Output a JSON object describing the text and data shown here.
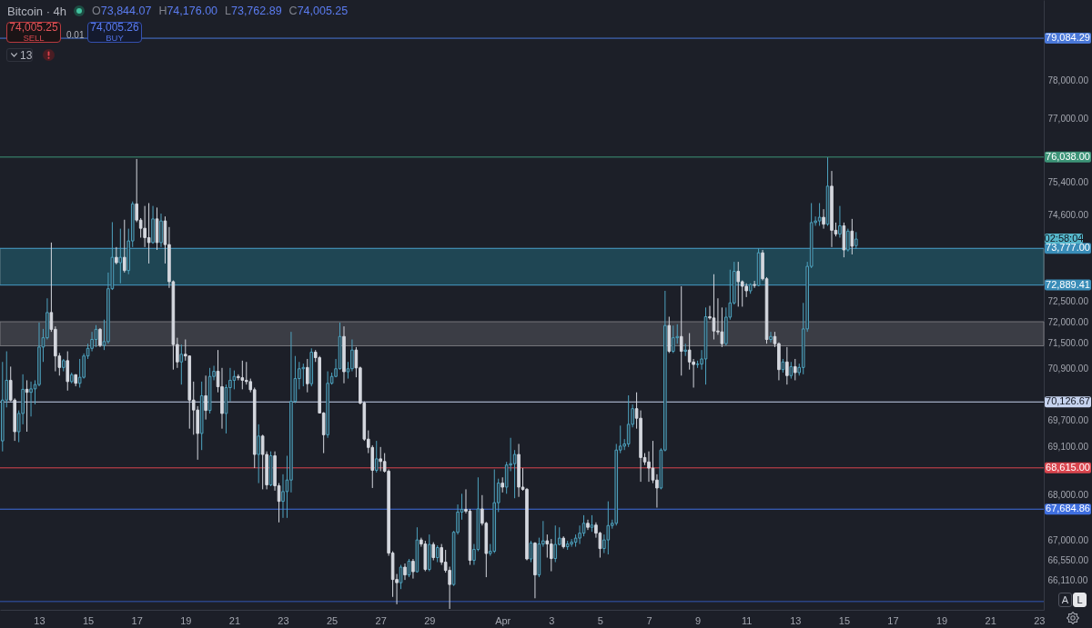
{
  "chart_data": {
    "type": "candlestick",
    "title": "Bitcoin · 4h",
    "x": [
      "--03-11T12:00",
      "--03-11T16:00",
      "--03-11T20:00",
      "--03-12T00:00",
      "--03-12T04:00",
      "--03-12T08:00",
      "--03-12T12:00",
      "--03-12T16:00",
      "--03-12T20:00",
      "--03-13T00:00",
      "--03-13T04:00",
      "--03-13T08:00",
      "--03-13T12:00",
      "--03-13T16:00",
      "--03-13T20:00",
      "--03-14T00:00",
      "--03-14T04:00",
      "--03-14T08:00",
      "--03-14T12:00",
      "--03-14T16:00",
      "--03-14T20:00",
      "--03-15T00:00",
      "--03-15T04:00",
      "--03-15T08:00",
      "--03-15T12:00",
      "--03-15T16:00",
      "--03-15T20:00",
      "--03-16T00:00",
      "--03-16T04:00",
      "--03-16T08:00",
      "--03-16T12:00",
      "--03-16T16:00",
      "--03-16T20:00",
      "--03-17T00:00",
      "--03-17T04:00",
      "--03-17T08:00",
      "--03-17T12:00",
      "--03-17T16:00",
      "--03-17T20:00",
      "--03-18T00:00",
      "--03-18T04:00",
      "--03-18T08:00",
      "--03-18T12:00",
      "--03-18T16:00",
      "--03-18T20:00",
      "--03-19T00:00",
      "--03-19T04:00",
      "--03-19T08:00",
      "--03-19T12:00",
      "--03-19T16:00",
      "--03-19T20:00",
      "--03-20T00:00",
      "--03-20T04:00",
      "--03-20T08:00",
      "--03-20T12:00",
      "--03-20T16:00",
      "--03-20T20:00",
      "--03-21T00:00",
      "--03-21T04:00",
      "--03-21T08:00",
      "--03-21T12:00",
      "--03-21T16:00",
      "--03-21T20:00",
      "--03-22T00:00",
      "--03-22T04:00",
      "--03-22T08:00",
      "--03-22T12:00",
      "--03-22T16:00",
      "--03-22T20:00",
      "--03-23T00:00",
      "--03-23T04:00",
      "--03-23T08:00",
      "--03-23T12:00",
      "--03-23T16:00",
      "--03-23T20:00",
      "--03-24T00:00",
      "--03-24T04:00",
      "--03-24T08:00",
      "--03-24T12:00",
      "--03-24T16:00",
      "--03-24T20:00",
      "--03-25T00:00",
      "--03-25T04:00",
      "--03-25T08:00",
      "--03-25T12:00",
      "--03-25T16:00",
      "--03-25T20:00",
      "--03-26T00:00",
      "--03-26T04:00",
      "--03-26T08:00",
      "--03-26T12:00",
      "--03-26T16:00",
      "--03-26T20:00",
      "--03-27T00:00",
      "--03-27T04:00",
      "--03-27T08:00",
      "--03-27T12:00",
      "--03-27T16:00",
      "--03-27T20:00",
      "--03-28T00:00",
      "--03-28T04:00",
      "--03-28T08:00",
      "--03-28T12:00",
      "--03-28T16:00",
      "--03-28T20:00",
      "--03-29T00:00",
      "--03-29T04:00",
      "--03-29T08:00",
      "--03-29T12:00",
      "--03-29T16:00",
      "--03-29T20:00",
      "--03-30T00:00",
      "--03-30T04:00",
      "--03-30T08:00",
      "--03-30T12:00",
      "--03-30T16:00",
      "--03-30T20:00",
      "--03-31T00:00",
      "--03-31T04:00",
      "--03-31T08:00",
      "--03-31T12:00",
      "--03-31T16:00",
      "--03-31T20:00",
      "--04-01T00:00",
      "--04-01T04:00",
      "--04-01T08:00",
      "--04-01T12:00",
      "--04-01T16:00",
      "--04-01T20:00",
      "--04-02T00:00",
      "--04-02T04:00",
      "--04-02T08:00",
      "--04-02T12:00",
      "--04-02T16:00",
      "--04-02T20:00",
      "--04-03T00:00",
      "--04-03T04:00",
      "--04-03T08:00",
      "--04-03T12:00",
      "--04-03T16:00",
      "--04-03T20:00",
      "--04-04T00:00",
      "--04-04T04:00",
      "--04-04T08:00",
      "--04-04T12:00",
      "--04-04T16:00",
      "--04-04T20:00",
      "--04-05T00:00",
      "--04-05T04:00",
      "--04-05T08:00",
      "--04-05T12:00",
      "--04-05T16:00",
      "--04-05T20:00",
      "--04-06T00:00",
      "--04-06T04:00",
      "--04-06T08:00",
      "--04-06T12:00",
      "--04-06T16:00",
      "--04-06T20:00",
      "--04-07T00:00",
      "--04-07T04:00",
      "--04-07T08:00",
      "--04-07T12:00",
      "--04-07T16:00",
      "--04-07T20:00",
      "--04-08T00:00",
      "--04-08T04:00",
      "--04-08T08:00",
      "--04-08T12:00",
      "--04-08T16:00",
      "--04-08T20:00",
      "--04-09T00:00",
      "--04-09T04:00",
      "--04-09T08:00",
      "--04-09T12:00",
      "--04-09T16:00",
      "--04-09T20:00",
      "--04-10T00:00",
      "--04-10T04:00",
      "--04-10T08:00",
      "--04-10T12:00",
      "--04-10T16:00",
      "--04-10T20:00",
      "--04-11T00:00",
      "--04-11T04:00",
      "--04-11T08:00",
      "--04-11T12:00",
      "--04-11T16:00",
      "--04-11T20:00",
      "--04-12T00:00",
      "--04-12T04:00",
      "--04-12T08:00",
      "--04-12T12:00",
      "--04-12T16:00",
      "--04-12T20:00",
      "--04-13T00:00",
      "--04-13T04:00",
      "--04-13T08:00",
      "--04-13T12:00",
      "--04-13T16:00",
      "--04-13T20:00",
      "--04-14T00:00",
      "--04-14T04:00",
      "--04-14T08:00",
      "--04-14T12:00",
      "--04-14T16:00",
      "--04-14T20:00",
      "--04-15T00:00",
      "--04-15T04:00",
      "--04-15T08:00",
      "--04-15T12:00"
    ],
    "ohlc": [
      [
        69230,
        71060,
        68990,
        70170
      ],
      [
        70170,
        71310,
        70000,
        70630
      ],
      [
        70630,
        70950,
        70140,
        70170
      ],
      [
        70170,
        70210,
        69230,
        69440
      ],
      [
        69440,
        69930,
        69200,
        69860
      ],
      [
        69860,
        70770,
        69610,
        70420
      ],
      [
        70420,
        70630,
        69440,
        70350
      ],
      [
        70350,
        70600,
        69790,
        70430
      ],
      [
        70430,
        70630,
        70070,
        70530
      ],
      [
        70530,
        71990,
        70490,
        71410
      ],
      [
        71410,
        71840,
        71060,
        71630
      ],
      [
        71630,
        72570,
        71590,
        72230
      ],
      [
        72230,
        73920,
        71770,
        71830
      ],
      [
        71830,
        71900,
        70840,
        71200
      ],
      [
        71200,
        71270,
        70740,
        70930
      ],
      [
        70930,
        71130,
        70840,
        71090
      ],
      [
        71090,
        71310,
        70390,
        70600
      ],
      [
        70600,
        70810,
        70560,
        70760
      ],
      [
        70760,
        70770,
        70490,
        70560
      ],
      [
        70560,
        71130,
        70460,
        70700
      ],
      [
        70700,
        71260,
        70670,
        71200
      ],
      [
        71200,
        71490,
        71130,
        71380
      ],
      [
        71380,
        71770,
        71310,
        71590
      ],
      [
        71590,
        71930,
        71410,
        71830
      ],
      [
        71830,
        71860,
        71410,
        71450
      ],
      [
        71450,
        72060,
        71340,
        71540
      ],
      [
        71540,
        73190,
        71490,
        72800
      ],
      [
        72800,
        74420,
        72770,
        73560
      ],
      [
        73560,
        73810,
        73390,
        73430
      ],
      [
        73430,
        74260,
        72930,
        73560
      ],
      [
        73560,
        74480,
        73190,
        73240
      ],
      [
        73240,
        74260,
        73150,
        73960
      ],
      [
        73960,
        74930,
        73810,
        74870
      ],
      [
        74870,
        75990,
        74420,
        74470
      ],
      [
        74470,
        74520,
        74040,
        74270
      ],
      [
        74270,
        74820,
        73810,
        74040
      ],
      [
        74040,
        74890,
        73410,
        73920
      ],
      [
        73920,
        74820,
        73890,
        74500
      ],
      [
        74500,
        74780,
        73740,
        73920
      ],
      [
        73920,
        74630,
        73810,
        74450
      ],
      [
        74450,
        74560,
        73410,
        73870
      ],
      [
        73870,
        74300,
        72820,
        72970
      ],
      [
        72970,
        73000,
        70880,
        71470
      ],
      [
        71470,
        71630,
        70920,
        71060
      ],
      [
        71060,
        71470,
        70530,
        71240
      ],
      [
        71240,
        71590,
        71090,
        71200
      ],
      [
        71200,
        71210,
        69510,
        70170
      ],
      [
        70170,
        70600,
        69370,
        69940
      ],
      [
        69940,
        70030,
        68800,
        69400
      ],
      [
        69400,
        70600,
        69020,
        70270
      ],
      [
        70270,
        70740,
        69720,
        69930
      ],
      [
        69930,
        70920,
        69860,
        70720
      ],
      [
        70720,
        70970,
        70630,
        70840
      ],
      [
        70840,
        71340,
        70350,
        70480
      ],
      [
        70480,
        70920,
        69510,
        69860
      ],
      [
        69860,
        70530,
        69400,
        70460
      ],
      [
        70460,
        70920,
        70140,
        70630
      ],
      [
        70630,
        70860,
        70420,
        70720
      ],
      [
        70720,
        70770,
        70630,
        70690
      ],
      [
        70690,
        71090,
        70420,
        70630
      ],
      [
        70630,
        71060,
        70530,
        70600
      ],
      [
        70600,
        70670,
        70350,
        70410
      ],
      [
        70410,
        70460,
        68610,
        68920
      ],
      [
        68920,
        69610,
        68270,
        69340
      ],
      [
        69340,
        69370,
        68130,
        68920
      ],
      [
        68920,
        68990,
        68130,
        68230
      ],
      [
        68230,
        68990,
        68200,
        68890
      ],
      [
        68890,
        68990,
        68100,
        68210
      ],
      [
        68210,
        68270,
        67390,
        67860
      ],
      [
        67860,
        68470,
        67490,
        68080
      ],
      [
        68080,
        68890,
        67490,
        68340
      ],
      [
        68340,
        71770,
        68060,
        70140
      ],
      [
        70140,
        71200,
        70100,
        70670
      ],
      [
        70670,
        71060,
        70420,
        70900
      ],
      [
        70900,
        71020,
        70490,
        70930
      ],
      [
        70930,
        71130,
        70350,
        70550
      ],
      [
        70550,
        71380,
        70490,
        71290
      ],
      [
        71290,
        71340,
        71060,
        71160
      ],
      [
        71160,
        71200,
        69860,
        69870
      ],
      [
        69870,
        69890,
        68950,
        69370
      ],
      [
        69370,
        70840,
        69300,
        70560
      ],
      [
        70560,
        70810,
        70530,
        70720
      ],
      [
        70720,
        71130,
        70700,
        70900
      ],
      [
        70900,
        71990,
        70880,
        71660
      ],
      [
        71660,
        71900,
        70560,
        70830
      ],
      [
        70830,
        71060,
        70670,
        70900
      ],
      [
        70900,
        71590,
        70840,
        71340
      ],
      [
        71340,
        71410,
        70700,
        70920
      ],
      [
        70920,
        70950,
        70070,
        70100
      ],
      [
        70100,
        70140,
        69230,
        69270
      ],
      [
        69270,
        69470,
        68950,
        69080
      ],
      [
        69080,
        69130,
        68160,
        68560
      ],
      [
        68560,
        69230,
        68510,
        68820
      ],
      [
        68820,
        69090,
        68540,
        68760
      ],
      [
        68760,
        68950,
        68510,
        68540
      ],
      [
        68540,
        68580,
        66650,
        66710
      ],
      [
        66710,
        66750,
        65750,
        66130
      ],
      [
        66130,
        66250,
        65590,
        66060
      ],
      [
        66060,
        66450,
        65920,
        66400
      ],
      [
        66400,
        66480,
        66120,
        66230
      ],
      [
        66230,
        66580,
        66180,
        66530
      ],
      [
        66530,
        66580,
        66150,
        66300
      ],
      [
        66300,
        67280,
        66280,
        67000
      ],
      [
        67000,
        67050,
        66850,
        66910
      ],
      [
        66910,
        66980,
        66310,
        66350
      ],
      [
        66350,
        67120,
        66310,
        66900
      ],
      [
        66900,
        66950,
        66550,
        66610
      ],
      [
        66610,
        66880,
        66510,
        66830
      ],
      [
        66830,
        66910,
        66450,
        66510
      ],
      [
        66510,
        66780,
        66280,
        66330
      ],
      [
        66330,
        66410,
        65490,
        66020
      ],
      [
        66020,
        67200,
        65990,
        67170
      ],
      [
        67170,
        67790,
        67120,
        67620
      ],
      [
        67620,
        68030,
        67450,
        67680
      ],
      [
        67680,
        68130,
        67590,
        67640
      ],
      [
        67640,
        67690,
        66450,
        66550
      ],
      [
        66550,
        66910,
        66450,
        66790
      ],
      [
        66790,
        68400,
        66750,
        67690
      ],
      [
        67690,
        68000,
        67320,
        67370
      ],
      [
        67370,
        67400,
        66180,
        66700
      ],
      [
        66700,
        66910,
        66650,
        66750
      ],
      [
        66750,
        68580,
        66710,
        67830
      ],
      [
        67830,
        68370,
        67620,
        68270
      ],
      [
        68270,
        68400,
        68060,
        68180
      ],
      [
        68180,
        68750,
        68030,
        68680
      ],
      [
        68680,
        69300,
        68540,
        68710
      ],
      [
        68710,
        69020,
        67930,
        68920
      ],
      [
        68920,
        69160,
        67960,
        68180
      ],
      [
        68180,
        68610,
        68100,
        68130
      ],
      [
        68130,
        68160,
        66550,
        66580
      ],
      [
        66580,
        66980,
        66510,
        66930
      ],
      [
        66930,
        66950,
        65720,
        66230
      ],
      [
        66230,
        67050,
        66180,
        66910
      ],
      [
        66910,
        67420,
        66850,
        66980
      ],
      [
        66980,
        67120,
        66610,
        66910
      ],
      [
        66910,
        67020,
        66310,
        66590
      ],
      [
        66590,
        67320,
        66510,
        66900
      ],
      [
        66900,
        67280,
        66880,
        67040
      ],
      [
        67040,
        67080,
        66810,
        66850
      ],
      [
        66850,
        66980,
        66780,
        66910
      ],
      [
        66910,
        67020,
        66850,
        66950
      ],
      [
        66950,
        67120,
        66850,
        67040
      ],
      [
        67040,
        67320,
        66910,
        67150
      ],
      [
        67150,
        67550,
        67080,
        67370
      ],
      [
        67370,
        67450,
        67220,
        67280
      ],
      [
        67280,
        67550,
        67180,
        67330
      ],
      [
        67330,
        67390,
        67050,
        67150
      ],
      [
        67150,
        67180,
        66610,
        66810
      ],
      [
        66810,
        67120,
        66710,
        67000
      ],
      [
        67000,
        67860,
        66680,
        67320
      ],
      [
        67320,
        67450,
        67250,
        67370
      ],
      [
        67370,
        69160,
        67320,
        69020
      ],
      [
        69020,
        69580,
        68950,
        69110
      ],
      [
        69110,
        69270,
        69020,
        69160
      ],
      [
        69160,
        70280,
        69090,
        69610
      ],
      [
        69610,
        70070,
        69540,
        69970
      ],
      [
        69970,
        70350,
        69510,
        69750
      ],
      [
        69750,
        69930,
        68300,
        68850
      ],
      [
        68850,
        68950,
        68680,
        68750
      ],
      [
        68750,
        68990,
        68300,
        68610
      ],
      [
        68610,
        69230,
        68270,
        68340
      ],
      [
        68340,
        68470,
        67720,
        68160
      ],
      [
        68160,
        69060,
        68130,
        69020
      ],
      [
        69020,
        72750,
        68990,
        71920
      ],
      [
        71920,
        72130,
        71270,
        71310
      ],
      [
        71310,
        71920,
        71270,
        71630
      ],
      [
        71630,
        71950,
        71490,
        71660
      ],
      [
        71660,
        72860,
        70740,
        71310
      ],
      [
        71310,
        71490,
        71200,
        71340
      ],
      [
        71340,
        71740,
        70880,
        71060
      ],
      [
        71060,
        71130,
        70460,
        71000
      ],
      [
        71000,
        71090,
        70920,
        71010
      ],
      [
        71010,
        71340,
        70880,
        71130
      ],
      [
        71130,
        72350,
        70530,
        72130
      ],
      [
        72130,
        72390,
        72060,
        72100
      ],
      [
        72100,
        73150,
        71590,
        71790
      ],
      [
        71790,
        72570,
        71700,
        71770
      ],
      [
        71770,
        72350,
        71410,
        71490
      ],
      [
        71490,
        72350,
        71450,
        72120
      ],
      [
        72120,
        73260,
        72060,
        72460
      ],
      [
        72460,
        73450,
        72420,
        73220
      ],
      [
        73220,
        73450,
        72370,
        72970
      ],
      [
        72970,
        73000,
        72370,
        72860
      ],
      [
        72860,
        72930,
        72600,
        72750
      ],
      [
        72750,
        72930,
        72680,
        72900
      ],
      [
        72900,
        72990,
        72820,
        72880
      ],
      [
        72880,
        73780,
        72860,
        73670
      ],
      [
        73670,
        73740,
        73000,
        73040
      ],
      [
        73040,
        73080,
        71490,
        71590
      ],
      [
        71590,
        71770,
        71520,
        71660
      ],
      [
        71660,
        71770,
        71410,
        71490
      ],
      [
        71490,
        71520,
        70630,
        70880
      ],
      [
        70880,
        71130,
        70810,
        71060
      ],
      [
        71060,
        71410,
        70530,
        70740
      ],
      [
        70740,
        71060,
        70670,
        70950
      ],
      [
        70950,
        71130,
        70630,
        70810
      ],
      [
        70810,
        71020,
        70740,
        70930
      ],
      [
        70930,
        72460,
        70770,
        71840
      ],
      [
        71840,
        73450,
        71770,
        73340
      ],
      [
        73340,
        74890,
        73300,
        74410
      ],
      [
        74410,
        74560,
        74330,
        74450
      ],
      [
        74450,
        74890,
        74330,
        74540
      ],
      [
        74540,
        74740,
        74260,
        74370
      ],
      [
        74370,
        76030,
        74330,
        75310
      ],
      [
        75310,
        75690,
        73810,
        74220
      ],
      [
        74220,
        74410,
        74070,
        74130
      ],
      [
        74130,
        74820,
        74040,
        74330
      ],
      [
        74330,
        74410,
        73560,
        73740
      ],
      [
        73740,
        74260,
        73700,
        74200
      ],
      [
        74200,
        74500,
        73630,
        73830
      ],
      [
        73844.07,
        74176.0,
        73762.89,
        74005.25
      ]
    ],
    "colors": [
      "#4ea3bf",
      "#4ea3bf",
      "#d4d7de",
      "#d4d7de",
      "#4ea3bf",
      "#4ea3bf",
      "#d4d7de",
      "#4ea3bf",
      "#4ea3bf",
      "#4ea3bf",
      "#4ea3bf",
      "#4ea3bf",
      "#d4d7de",
      "#d4d7de",
      "#d4d7de",
      "#4ea3bf",
      "#d4d7de",
      "#4ea3bf",
      "#d4d7de",
      "#4ea3bf",
      "#4ea3bf",
      "#4ea3bf",
      "#4ea3bf",
      "#4ea3bf",
      "#d4d7de",
      "#4ea3bf",
      "#4ea3bf",
      "#4ea3bf",
      "#d4d7de",
      "#4ea3bf",
      "#d4d7de",
      "#4ea3bf",
      "#4ea3bf",
      "#d4d7de",
      "#d4d7de",
      "#d4d7de",
      "#d4d7de",
      "#4ea3bf",
      "#d4d7de",
      "#4ea3bf",
      "#d4d7de",
      "#d4d7de",
      "#d4d7de",
      "#d4d7de",
      "#4ea3bf",
      "#d4d7de",
      "#d4d7de",
      "#d4d7de",
      "#d4d7de",
      "#4ea3bf",
      "#d4d7de",
      "#4ea3bf",
      "#4ea3bf",
      "#d4d7de",
      "#d4d7de",
      "#4ea3bf",
      "#4ea3bf",
      "#4ea3bf",
      "#d4d7de",
      "#d4d7de",
      "#d4d7de",
      "#d4d7de",
      "#d4d7de",
      "#4ea3bf",
      "#d4d7de",
      "#d4d7de",
      "#4ea3bf",
      "#d4d7de",
      "#d4d7de",
      "#4ea3bf",
      "#4ea3bf",
      "#4ea3bf",
      "#4ea3bf",
      "#4ea3bf",
      "#4ea3bf",
      "#d4d7de",
      "#4ea3bf",
      "#d4d7de",
      "#d4d7de",
      "#d4d7de",
      "#4ea3bf",
      "#4ea3bf",
      "#4ea3bf",
      "#4ea3bf",
      "#d4d7de",
      "#4ea3bf",
      "#4ea3bf",
      "#d4d7de",
      "#d4d7de",
      "#d4d7de",
      "#d4d7de",
      "#d4d7de",
      "#4ea3bf",
      "#d4d7de",
      "#d4d7de",
      "#d4d7de",
      "#d4d7de",
      "#d4d7de",
      "#4ea3bf",
      "#d4d7de",
      "#4ea3bf",
      "#d4d7de",
      "#4ea3bf",
      "#d4d7de",
      "#d4d7de",
      "#4ea3bf",
      "#d4d7de",
      "#4ea3bf",
      "#d4d7de",
      "#d4d7de",
      "#d4d7de",
      "#4ea3bf",
      "#4ea3bf",
      "#4ea3bf",
      "#d4d7de",
      "#d4d7de",
      "#4ea3bf",
      "#4ea3bf",
      "#d4d7de",
      "#d4d7de",
      "#4ea3bf",
      "#4ea3bf",
      "#4ea3bf",
      "#d4d7de",
      "#4ea3bf",
      "#4ea3bf",
      "#4ea3bf",
      "#d4d7de",
      "#d4d7de",
      "#d4d7de",
      "#4ea3bf",
      "#d4d7de",
      "#4ea3bf",
      "#4ea3bf",
      "#d4d7de",
      "#d4d7de",
      "#4ea3bf",
      "#4ea3bf",
      "#d4d7de",
      "#4ea3bf",
      "#4ea3bf",
      "#4ea3bf",
      "#4ea3bf",
      "#4ea3bf",
      "#d4d7de",
      "#4ea3bf",
      "#d4d7de",
      "#d4d7de",
      "#4ea3bf",
      "#4ea3bf",
      "#4ea3bf",
      "#4ea3bf",
      "#4ea3bf",
      "#4ea3bf",
      "#4ea3bf",
      "#4ea3bf",
      "#d4d7de",
      "#d4d7de",
      "#d4d7de",
      "#d4d7de",
      "#d4d7de",
      "#d4d7de",
      "#4ea3bf",
      "#4ea3bf",
      "#d4d7de",
      "#4ea3bf",
      "#4ea3bf",
      "#d4d7de",
      "#4ea3bf",
      "#d4d7de",
      "#d4d7de",
      "#4ea3bf",
      "#4ea3bf",
      "#4ea3bf",
      "#d4d7de",
      "#d4d7de",
      "#d4d7de",
      "#d4d7de",
      "#4ea3bf",
      "#4ea3bf",
      "#4ea3bf",
      "#d4d7de",
      "#d4d7de",
      "#d4d7de",
      "#4ea3bf",
      "#d4d7de",
      "#4ea3bf",
      "#d4d7de",
      "#d4d7de",
      "#4ea3bf",
      "#d4d7de",
      "#d4d7de",
      "#4ea3bf",
      "#d4d7de",
      "#4ea3bf",
      "#d4d7de",
      "#4ea3bf",
      "#4ea3bf",
      "#4ea3bf",
      "#4ea3bf",
      "#4ea3bf",
      "#4ea3bf",
      "#d4d7de",
      "#4ea3bf",
      "#d4d7de",
      "#d4d7de",
      "#4ea3bf",
      "#d4d7de",
      "#4ea3bf",
      "#d4d7de",
      "#4ea3bf"
    ],
    "xlim": [
      "--03-11T09:30",
      "--04-23T04:40"
    ],
    "xticks": [
      {
        "value": "--03-13",
        "label": "13"
      },
      {
        "value": "--03-15",
        "label": "15"
      },
      {
        "value": "--03-17",
        "label": "17"
      },
      {
        "value": "--03-19",
        "label": "19"
      },
      {
        "value": "--03-21",
        "label": "21"
      },
      {
        "value": "--03-23",
        "label": "23"
      },
      {
        "value": "--03-25",
        "label": "25"
      },
      {
        "value": "--03-27",
        "label": "27"
      },
      {
        "value": "--03-29",
        "label": "29"
      },
      {
        "value": "--04-01",
        "label": "Apr"
      },
      {
        "value": "--04-03",
        "label": "3"
      },
      {
        "value": "--04-05",
        "label": "5"
      },
      {
        "value": "--04-07",
        "label": "7"
      },
      {
        "value": "--04-09",
        "label": "9"
      },
      {
        "value": "--04-11",
        "label": "11"
      },
      {
        "value": "--04-13",
        "label": "13"
      },
      {
        "value": "--04-15",
        "label": "15"
      },
      {
        "value": "--04-17",
        "label": "17"
      },
      {
        "value": "--04-19",
        "label": "19"
      },
      {
        "value": "--04-21",
        "label": "21"
      },
      {
        "value": "--04-23",
        "label": "23"
      }
    ],
    "ylim": [
      65470,
      80090
    ],
    "yticks": [
      {
        "value": 78000,
        "label": "78,000.00"
      },
      {
        "value": 77000,
        "label": "77,000.00"
      },
      {
        "value": 75400,
        "label": "75,400.00"
      },
      {
        "value": 74600,
        "label": "74,600.00"
      },
      {
        "value": 72500,
        "label": "72,500.00"
      },
      {
        "value": 72000,
        "label": "72,000.00"
      },
      {
        "value": 71500,
        "label": "71,500.00"
      },
      {
        "value": 70900,
        "label": "70,900.00"
      },
      {
        "value": 69700,
        "label": "69,700.00"
      },
      {
        "value": 69100,
        "label": "69,100.00"
      },
      {
        "value": 68000,
        "label": "68,000.00"
      },
      {
        "value": 67000,
        "label": "67,000.00"
      },
      {
        "value": 66550,
        "label": "66,550.00"
      },
      {
        "value": 66110,
        "label": "66,110.00"
      }
    ],
    "log": true,
    "ref_lines": [
      {
        "axis": "y",
        "value": 79084.29,
        "label": "79,084.29",
        "color": "#4a78d8"
      },
      {
        "axis": "y",
        "value": 76038,
        "label": "76,038.00",
        "color": "#3d9478"
      },
      {
        "axis": "y",
        "value": 73777,
        "label": "73,777.00",
        "color": "#3a8db8"
      },
      {
        "axis": "y",
        "value": 72889.41,
        "label": "72,889.41",
        "color": "#3a8db8"
      },
      {
        "axis": "y",
        "value": 70126.67,
        "label": "70,126.67",
        "color": "#c6d3ee"
      },
      {
        "axis": "y",
        "value": 68615,
        "label": "68,615.00",
        "color": "#d9454e"
      },
      {
        "axis": "y",
        "value": 67684.86,
        "label": "67,684.86",
        "color": "#3f6fe0"
      },
      {
        "axis": "y",
        "value": 65650,
        "color": "#3358b8"
      }
    ],
    "bands": [
      {
        "axis": "y",
        "from": 72889.41,
        "to": 73777,
        "color": "#1f4654"
      },
      {
        "axis": "y",
        "from": 71440,
        "to": 72010,
        "color": "#3b3d45"
      }
    ],
    "annotations": [
      "O73,844.07",
      "H74,176.00",
      "L73,762.89",
      "C74,005.25",
      "74,005.25",
      "SELL",
      "0.01",
      "74,005.26",
      "BUY",
      "13",
      "A",
      "L",
      "02:58:04"
    ]
  }
}
